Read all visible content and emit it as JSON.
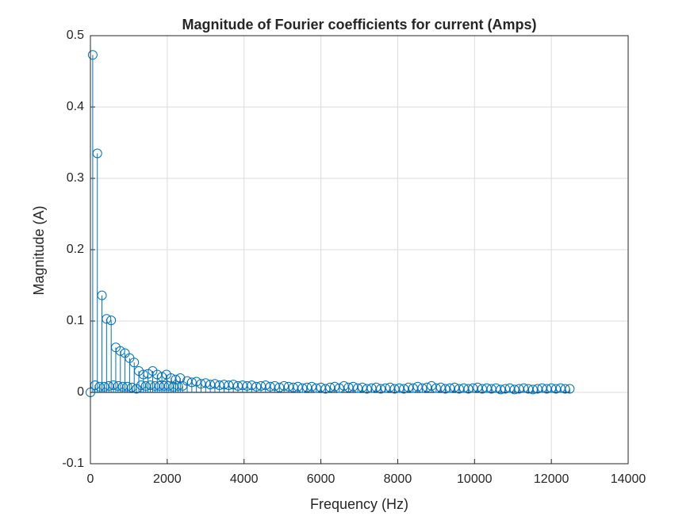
{
  "chart_data": {
    "type": "stem",
    "title": "Magnitude of Fourier coefficients for current (Amps)",
    "x_label": "Frequency (Hz)",
    "y_label": "Magnitude (A)",
    "color": "#0072bd",
    "grid": true,
    "xlim": [
      0,
      14000
    ],
    "xticks": [
      0,
      2000,
      4000,
      6000,
      8000,
      10000,
      12000,
      14000
    ],
    "ylim": [
      -0.1,
      0.5
    ],
    "yticks": [
      -0.1,
      0,
      0.1,
      0.2,
      0.3,
      0.4,
      0.5
    ],
    "x": [
      0,
      60,
      120,
      180,
      240,
      300,
      360,
      420,
      480,
      540,
      600,
      660,
      720,
      780,
      840,
      900,
      960,
      1020,
      1080,
      1140,
      1200,
      1260,
      1320,
      1380,
      1440,
      1500,
      1560,
      1620,
      1680,
      1740,
      1800,
      1860,
      1920,
      1980,
      2040,
      2100,
      2160,
      2220,
      2280,
      2340,
      2400,
      2520,
      2640,
      2760,
      2880,
      3000,
      3120,
      3240,
      3360,
      3480,
      3600,
      3720,
      3840,
      3960,
      4080,
      4200,
      4320,
      4440,
      4560,
      4680,
      4800,
      4920,
      5040,
      5160,
      5280,
      5400,
      5520,
      5640,
      5760,
      5880,
      6000,
      6120,
      6240,
      6360,
      6480,
      6600,
      6720,
      6840,
      6960,
      7080,
      7200,
      7320,
      7440,
      7560,
      7680,
      7800,
      7920,
      8040,
      8160,
      8280,
      8400,
      8520,
      8640,
      8760,
      8880,
      9000,
      9120,
      9240,
      9360,
      9480,
      9600,
      9720,
      9840,
      9960,
      10080,
      10200,
      10320,
      10440,
      10560,
      10680,
      10800,
      10920,
      11040,
      11160,
      11280,
      11400,
      11520,
      11640,
      11760,
      11880,
      12000,
      12120,
      12240,
      12360,
      12480
    ],
    "values": [
      0,
      0.473,
      0.01,
      0.335,
      0.008,
      0.136,
      0.008,
      0.103,
      0.009,
      0.101,
      0.01,
      0.063,
      0.009,
      0.058,
      0.008,
      0.055,
      0.008,
      0.048,
      0.007,
      0.042,
      0.005,
      0.03,
      0.01,
      0.025,
      0.009,
      0.026,
      0.01,
      0.03,
      0.009,
      0.025,
      0.009,
      0.022,
      0.009,
      0.025,
      0.009,
      0.02,
      0.008,
      0.018,
      0.009,
      0.02,
      0.009,
      0.016,
      0.014,
      0.015,
      0.012,
      0.013,
      0.011,
      0.012,
      0.01,
      0.011,
      0.01,
      0.011,
      0.009,
      0.01,
      0.009,
      0.01,
      0.008,
      0.009,
      0.01,
      0.008,
      0.009,
      0.007,
      0.009,
      0.008,
      0.007,
      0.008,
      0.006,
      0.007,
      0.008,
      0.006,
      0.007,
      0.005,
      0.007,
      0.008,
      0.006,
      0.009,
      0.007,
      0.008,
      0.006,
      0.007,
      0.005,
      0.006,
      0.007,
      0.005,
      0.006,
      0.007,
      0.005,
      0.006,
      0.005,
      0.007,
      0.006,
      0.008,
      0.006,
      0.007,
      0.009,
      0.006,
      0.007,
      0.005,
      0.006,
      0.007,
      0.005,
      0.006,
      0.005,
      0.006,
      0.007,
      0.005,
      0.006,
      0.005,
      0.006,
      0.004,
      0.005,
      0.006,
      0.004,
      0.005,
      0.006,
      0.005,
      0.004,
      0.005,
      0.006,
      0.005,
      0.006,
      0.005,
      0.006,
      0.005,
      0.005
    ]
  }
}
